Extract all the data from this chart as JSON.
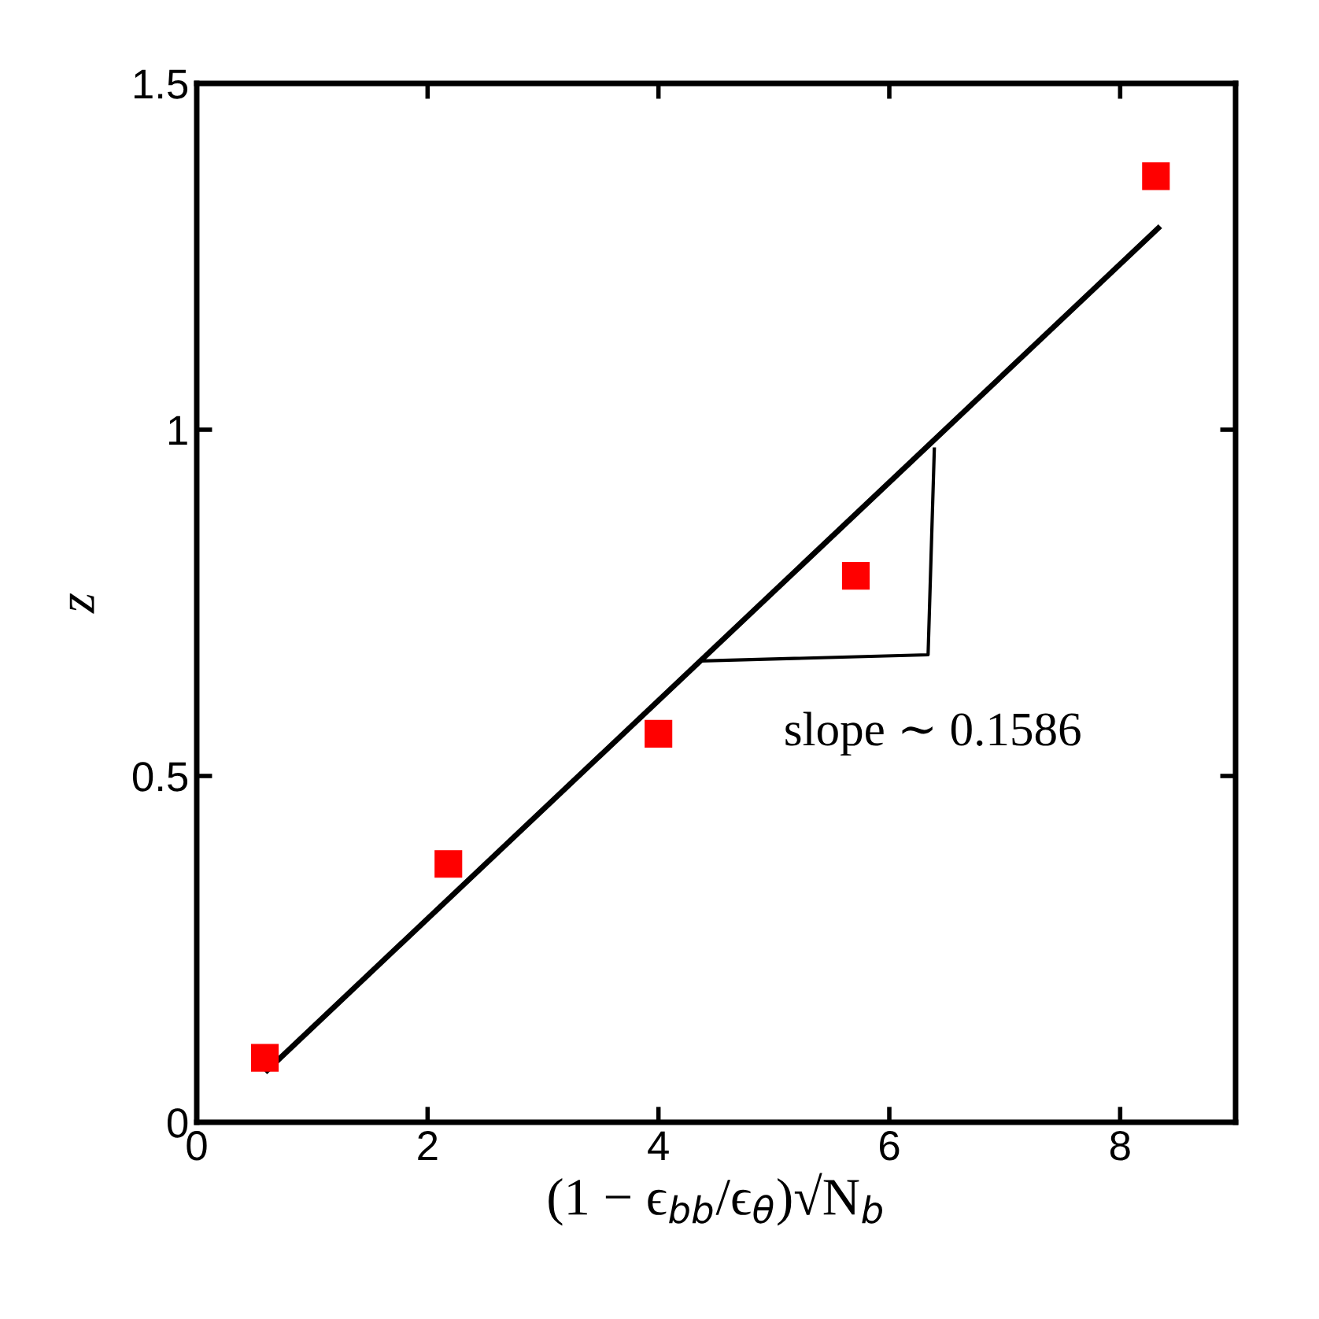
{
  "chart_data": {
    "type": "scatter",
    "xlabel": "(1 − ϵ$_{bb}$/ϵ$_{θ}$)√N$_{b}$",
    "ylabel": "z",
    "xlim": [
      0,
      9
    ],
    "ylim": [
      0,
      1.5
    ],
    "xticks": [
      0,
      2,
      4,
      6,
      8
    ],
    "yticks": [
      0,
      {
        "value": 0.5,
        "label": "0.5"
      },
      1,
      {
        "value": 1.5,
        "label": "1.5"
      }
    ],
    "grid": false,
    "legend": false,
    "series": [
      {
        "type": "line",
        "color": "#000000",
        "x": [
          0.61,
          8.33
        ],
        "values": [
          0.075,
          1.291
        ],
        "line_style": "solid",
        "marker": "none"
      },
      {
        "color": "#ff0000",
        "x": [
          0.59,
          2.18,
          4.0,
          5.71,
          8.31
        ],
        "values": [
          0.093,
          0.373,
          0.561,
          0.789,
          1.366
        ],
        "marker": "square"
      }
    ],
    "annotations": [
      "slope ∼ 0.1586"
    ]
  }
}
